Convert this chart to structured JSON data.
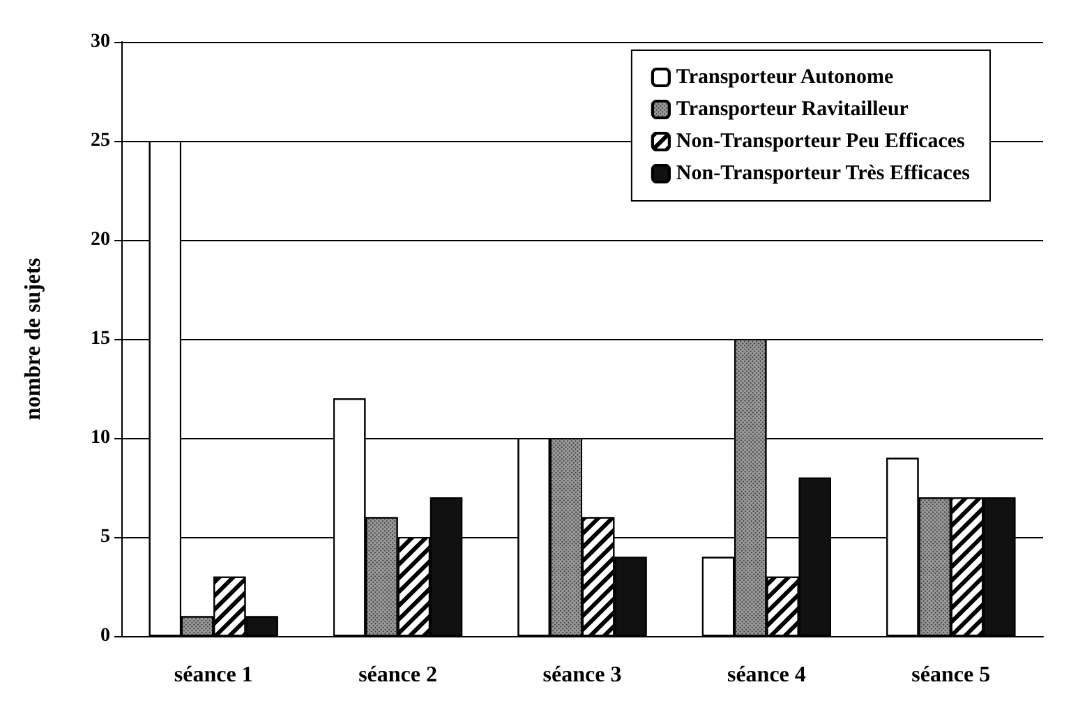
{
  "chart_data": {
    "type": "bar",
    "ylabel": "nombre de sujets",
    "categories": [
      "séance 1",
      "séance 2",
      "séance 3",
      "séance 4",
      "séance 5"
    ],
    "series": [
      {
        "name": "Transporteur Autonome",
        "color": "#ffffff",
        "values": [
          25,
          12,
          10,
          4,
          9
        ]
      },
      {
        "name": "Transporteur Ravitailleur",
        "color": "#9a9a9a",
        "values": [
          1,
          6,
          10,
          15,
          7
        ]
      },
      {
        "name": "Non-Transporteur Peu Efficaces",
        "color": "#ffffff",
        "values": [
          3,
          5,
          6,
          3,
          7
        ]
      },
      {
        "name": "Non-Transporteur Très Efficaces",
        "color": "#111111",
        "values": [
          1,
          7,
          4,
          8,
          7
        ]
      }
    ],
    "ylim": [
      0,
      30
    ],
    "yticks": [
      0,
      5,
      10,
      15,
      20,
      25,
      30
    ],
    "grid": "y",
    "legend": "top right"
  }
}
